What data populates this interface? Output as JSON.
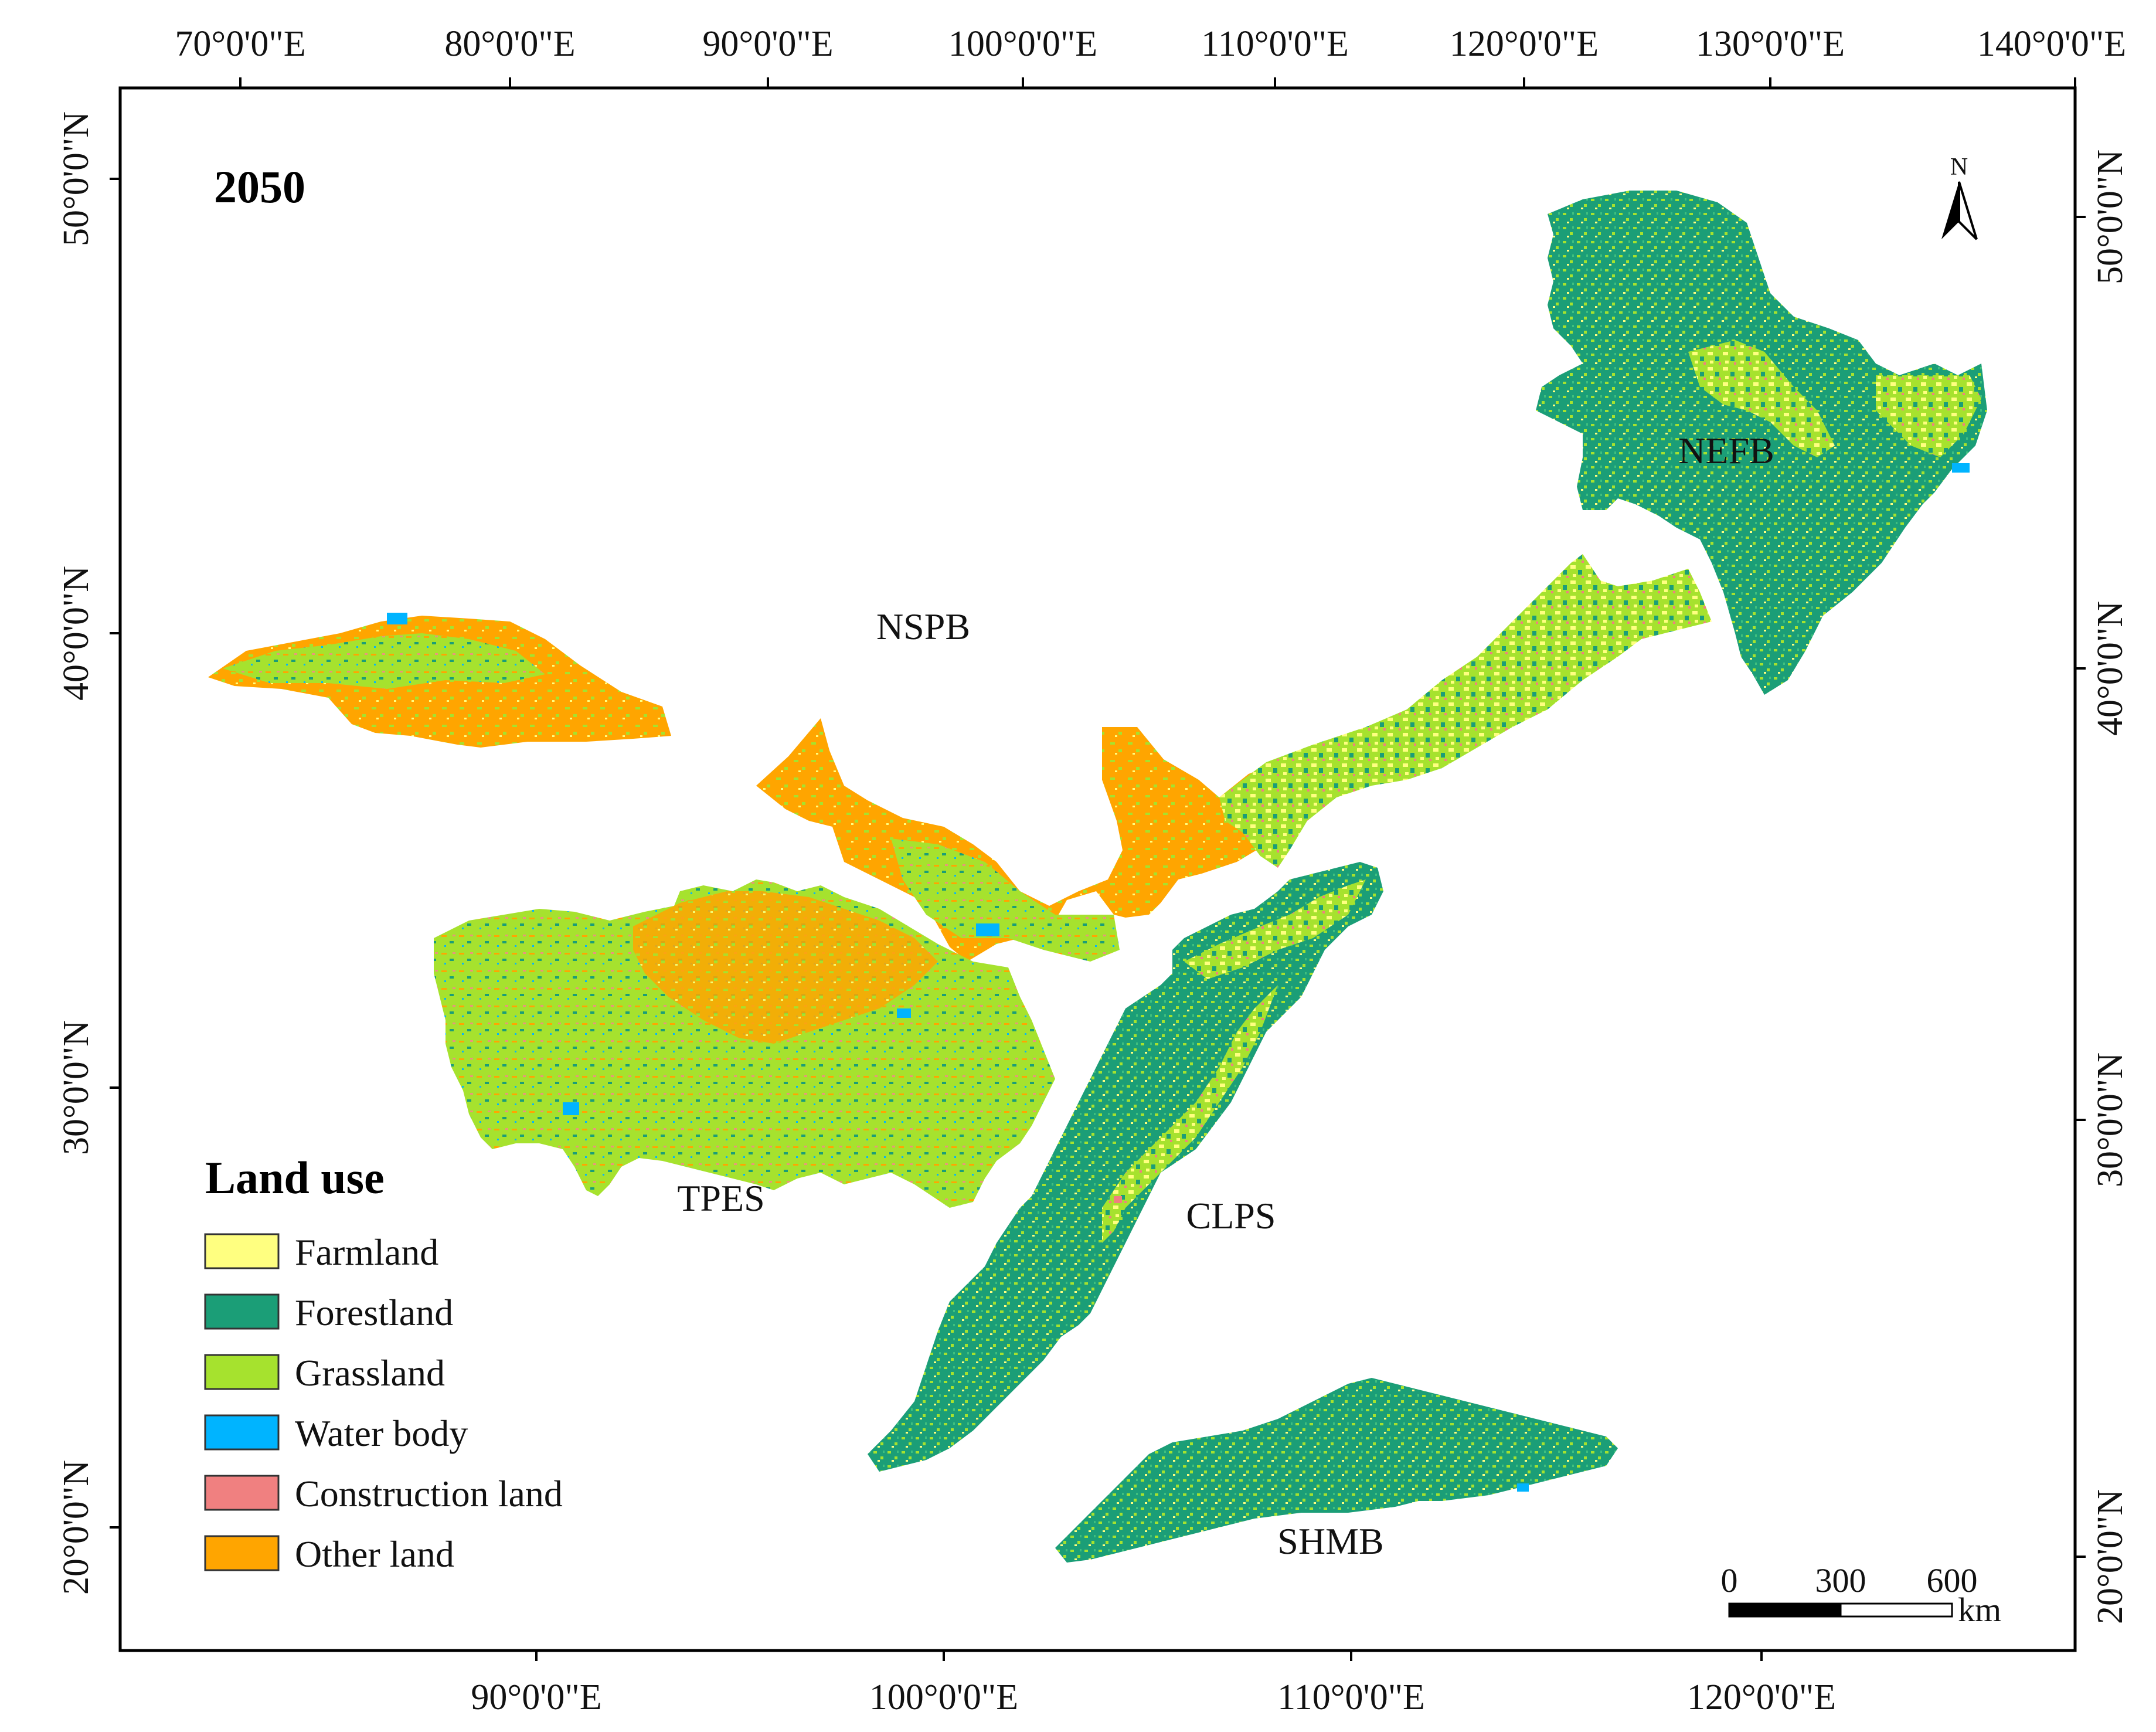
{
  "map": {
    "year": "2050",
    "top_lon_labels": [
      "70°0'0\"E",
      "80°0'0\"E",
      "90°0'0\"E",
      "100°0'0\"E",
      "110°0'0\"E",
      "120°0'0\"E",
      "130°0'0\"E",
      "140°0'0\"E"
    ],
    "bottom_lon_labels": [
      "90°0'0\"E",
      "100°0'0\"E",
      "110°0'0\"E",
      "120°0'0\"E"
    ],
    "left_lat_labels": [
      "50°0'0\"N",
      "40°0'0\"N",
      "30°0'0\"N",
      "20°0'0\"N"
    ],
    "right_lat_labels": [
      "50°0'0\"N",
      "40°0'0\"N",
      "30°0'0\"N",
      "20°0'0\"N"
    ],
    "north_arrow": {
      "label": "N",
      "icon": "north-arrow-icon"
    },
    "regions": [
      {
        "id": "NSPB",
        "label": "NSPB"
      },
      {
        "id": "NEFB",
        "label": "NEFB"
      },
      {
        "id": "TPES",
        "label": "TPES"
      },
      {
        "id": "CLPS",
        "label": "CLPS"
      },
      {
        "id": "SHMB",
        "label": "SHMB"
      }
    ],
    "legend": {
      "title": "Land use",
      "items": [
        {
          "label": "Farmland",
          "color": "#FFFF80"
        },
        {
          "label": "Forestland",
          "color": "#1B9E77"
        },
        {
          "label": "Grassland",
          "color": "#A6E22E"
        },
        {
          "label": "Water body",
          "color": "#00B4FF"
        },
        {
          "label": "Construction land",
          "color": "#F08080"
        },
        {
          "label": "Other land",
          "color": "#FFA500"
        }
      ]
    },
    "scale_bar": {
      "ticks": [
        "0",
        "300",
        "600"
      ],
      "unit": "km"
    }
  }
}
